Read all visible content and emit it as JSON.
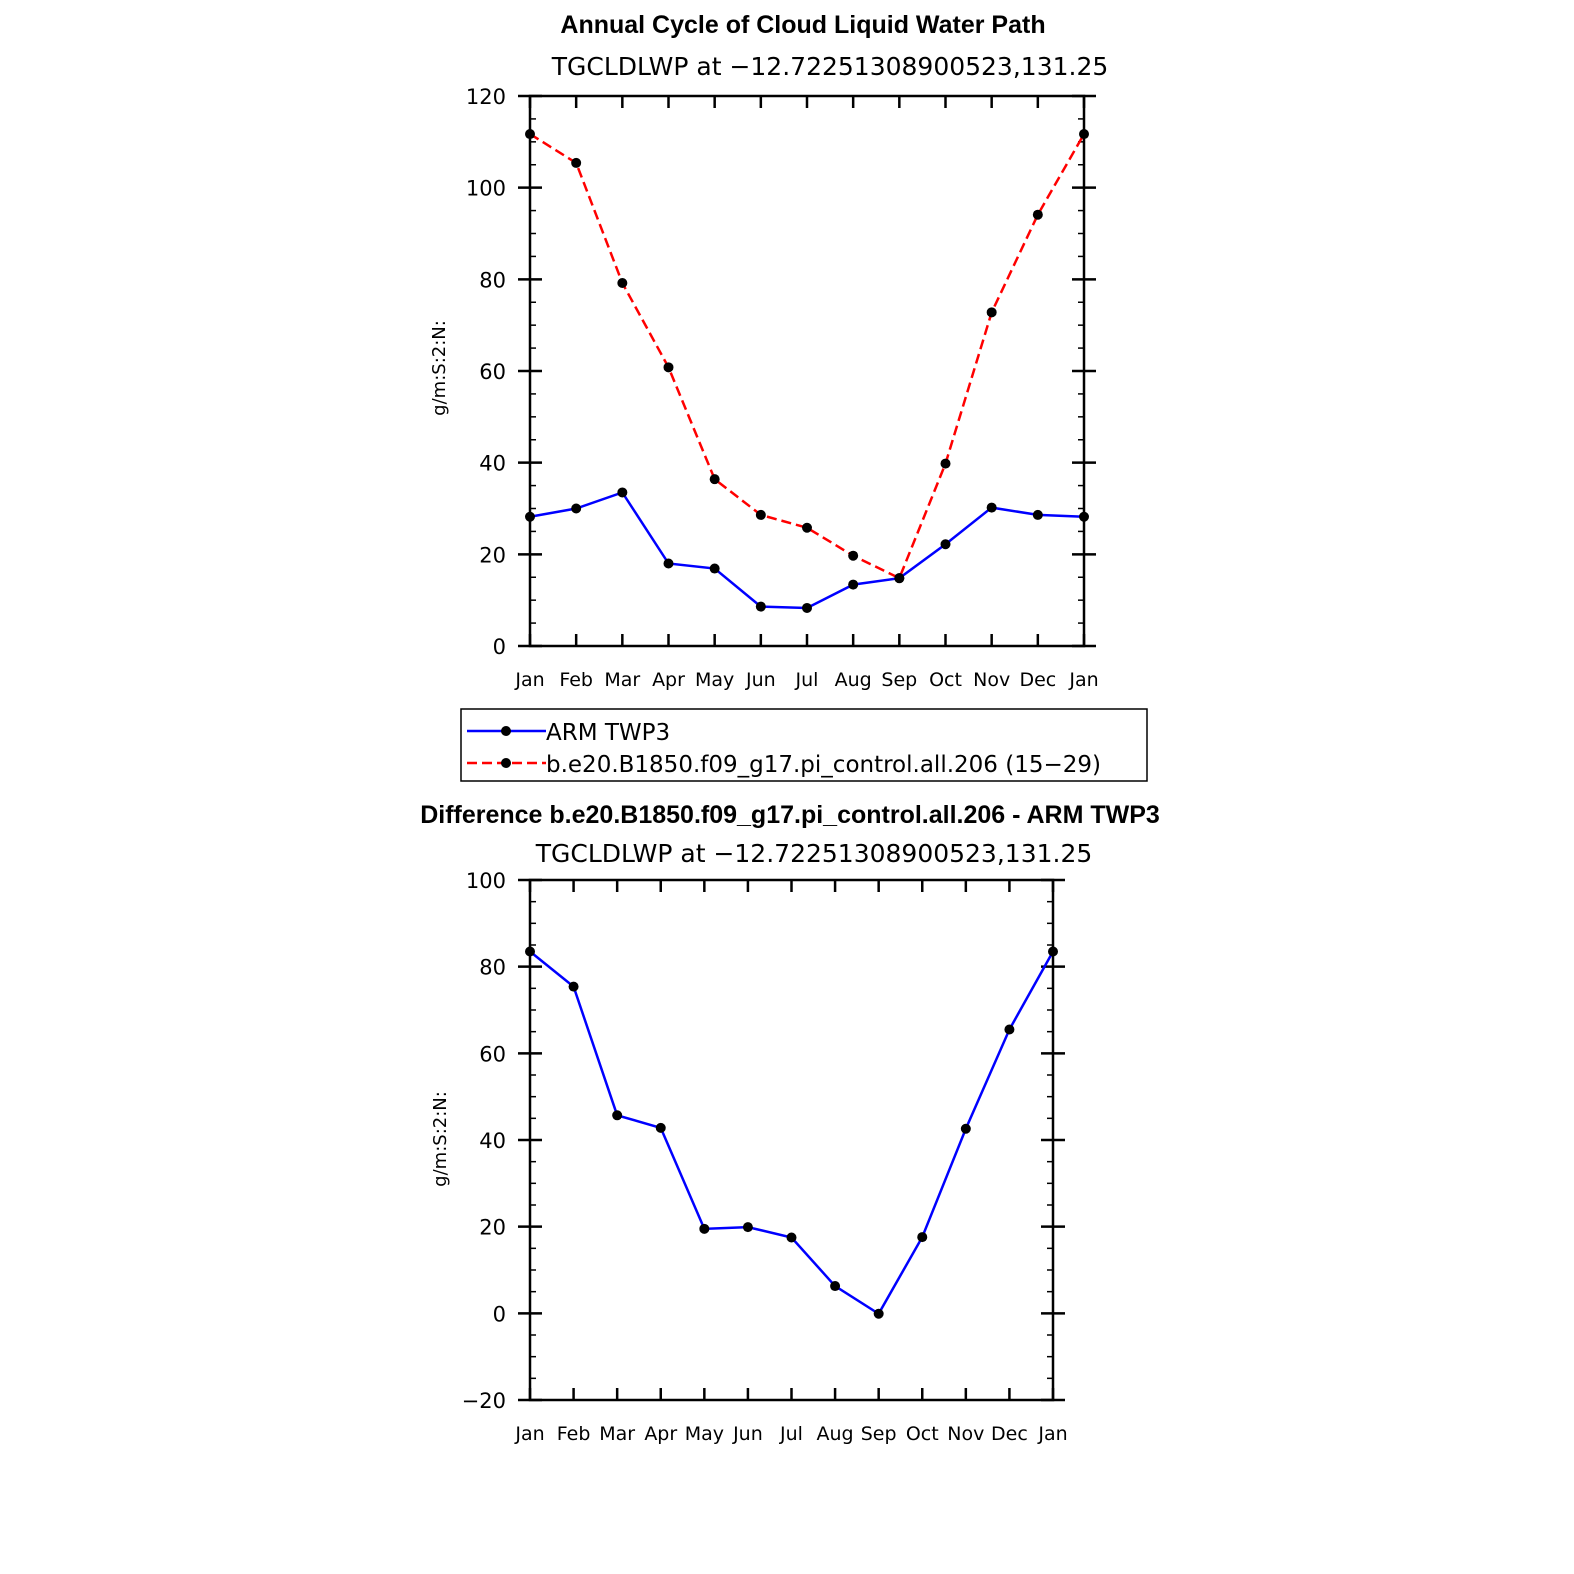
{
  "chart_data": [
    {
      "type": "line",
      "title": "Annual Cycle of Cloud Liquid Water Path",
      "subtitle": "TGCLDLWP at −12.72251308900523,131.25",
      "xlabel": "",
      "ylabel": "g/m:S:2:N:",
      "categories": [
        "Jan",
        "Feb",
        "Mar",
        "Apr",
        "May",
        "Jun",
        "Jul",
        "Aug",
        "Sep",
        "Oct",
        "Nov",
        "Dec",
        "Jan"
      ],
      "ylim": [
        0,
        120
      ],
      "yticks": [
        0,
        20,
        40,
        60,
        80,
        100,
        120
      ],
      "yminor_step": 5,
      "series": [
        {
          "name": "ARM TWP3",
          "color": "#0000ff",
          "dashed": false,
          "values": [
            28.2,
            30.0,
            33.5,
            18.0,
            16.9,
            8.6,
            8.3,
            13.4,
            14.8,
            22.2,
            30.2,
            28.6,
            28.2
          ]
        },
        {
          "name": "b.e20.B1850.f09_g17.pi_control.all.206 (15−29)",
          "color": "#ff0000",
          "dashed": true,
          "values": [
            111.7,
            105.4,
            79.2,
            60.8,
            36.4,
            28.6,
            25.8,
            19.7,
            14.8,
            39.8,
            72.8,
            94.1,
            111.7
          ]
        }
      ],
      "legend": {
        "placement": "below",
        "entries": [
          "ARM TWP3",
          "b.e20.B1850.f09_g17.pi_control.all.206 (15−29)"
        ]
      }
    },
    {
      "type": "line",
      "title": "Difference b.e20.B1850.f09_g17.pi_control.all.206 - ARM TWP3",
      "subtitle": "TGCLDLWP at −12.72251308900523,131.25",
      "xlabel": "",
      "ylabel": "g/m:S:2:N:",
      "categories": [
        "Jan",
        "Feb",
        "Mar",
        "Apr",
        "May",
        "Jun",
        "Jul",
        "Aug",
        "Sep",
        "Oct",
        "Nov",
        "Dec",
        "Jan"
      ],
      "ylim": [
        -20,
        100
      ],
      "yticks": [
        -20,
        0,
        20,
        40,
        60,
        80,
        100
      ],
      "ytick_labels": [
        "−20",
        "0",
        "20",
        "40",
        "60",
        "80",
        "100"
      ],
      "yminor_step": 5,
      "series": [
        {
          "name": "Difference",
          "color": "#0000ff",
          "dashed": false,
          "values": [
            83.5,
            75.4,
            45.7,
            42.8,
            19.5,
            19.9,
            17.5,
            6.3,
            -0.1,
            17.6,
            42.6,
            65.5,
            83.5
          ]
        }
      ]
    }
  ]
}
